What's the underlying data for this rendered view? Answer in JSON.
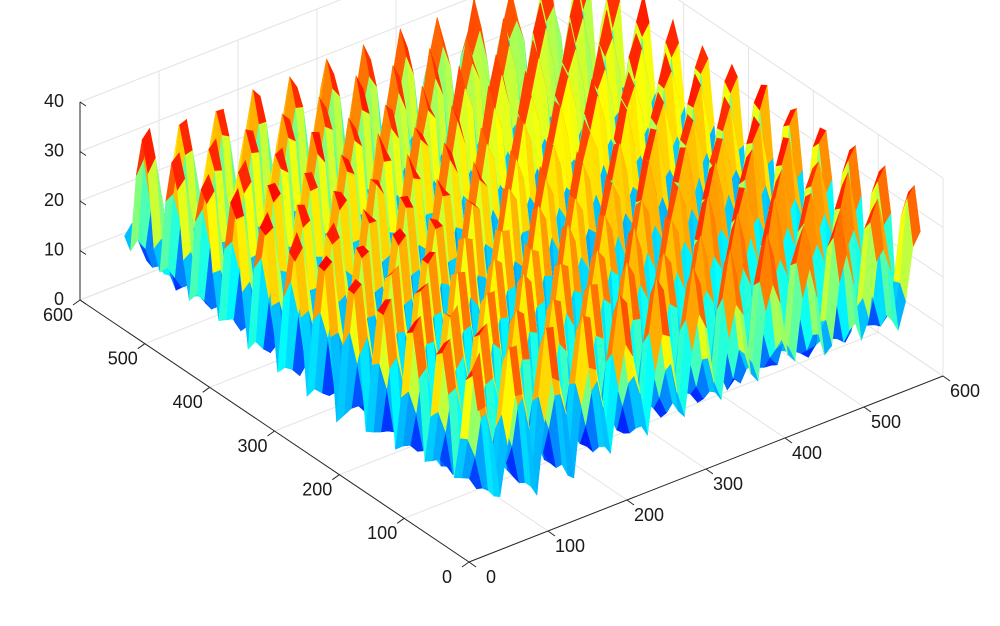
{
  "chart_data": {
    "type": "surface",
    "title": "",
    "xlabel": "",
    "ylabel": "",
    "zlabel": "",
    "xlim": [
      0,
      600
    ],
    "ylim": [
      0,
      600
    ],
    "zlim": [
      0,
      40
    ],
    "x_ticks": [
      0,
      100,
      200,
      300,
      400,
      500,
      600
    ],
    "y_ticks": [
      0,
      100,
      200,
      300,
      400,
      500,
      600
    ],
    "z_ticks": [
      0,
      10,
      20,
      30,
      40
    ],
    "x_tick_labels": [
      "0",
      "100",
      "200",
      "300",
      "400",
      "500",
      "600"
    ],
    "y_tick_labels": [
      "0",
      "100",
      "200",
      "300",
      "400",
      "500",
      "600"
    ],
    "z_tick_labels": [
      "0",
      "10",
      "20",
      "30",
      "40"
    ],
    "grid": true,
    "colormap": "jet",
    "colormap_stops": [
      "#00008f",
      "#0000ff",
      "#00ffff",
      "#ffff00",
      "#ff0000",
      "#800000"
    ],
    "surface": {
      "data_extent_x": [
        40,
        600
      ],
      "data_extent_y": [
        35,
        580
      ],
      "peak_period": 46,
      "z_min": 0,
      "z_max": 36,
      "z_valley": 4
    }
  }
}
